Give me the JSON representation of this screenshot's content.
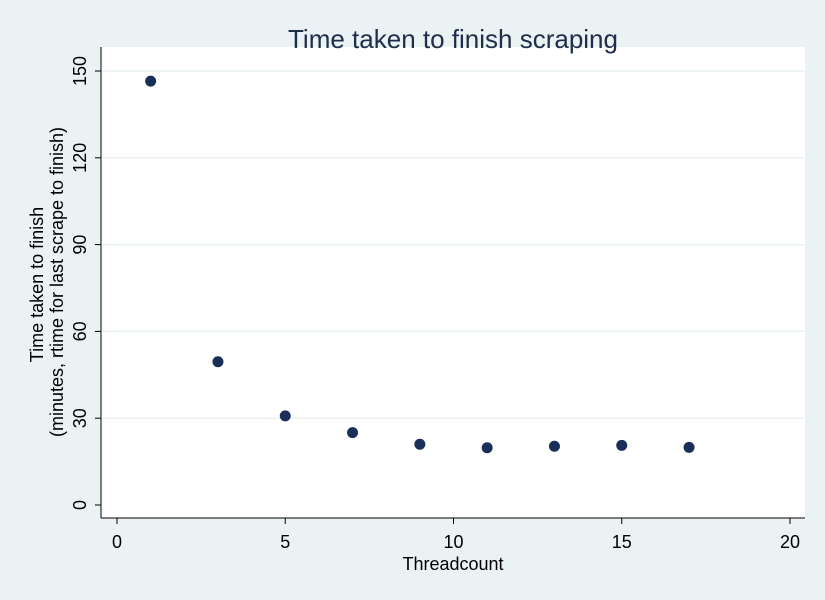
{
  "chart_data": {
    "type": "scatter",
    "title": "Time taken to finish scraping",
    "xlabel": "Threadcount",
    "ylabel_lines": [
      "Time taken to finish",
      "(minutes, rtime for last scrape to finish)"
    ],
    "xlim": [
      0,
      20
    ],
    "ylim": [
      0,
      150
    ],
    "xticks": [
      0,
      5,
      10,
      15,
      20
    ],
    "yticks": [
      0,
      30,
      60,
      90,
      120,
      150
    ],
    "grid": "horizontal",
    "series": [
      {
        "x": [
          1,
          3,
          5,
          7,
          9,
          11,
          13,
          15,
          17
        ],
        "y": [
          146.5,
          49.5,
          30.8,
          25.0,
          21.0,
          19.8,
          20.3,
          20.6,
          19.9
        ]
      }
    ],
    "colors": {
      "background": "#eaf2f3",
      "plot_area": "#ffffff",
      "point": "#1a2e5a",
      "title": "#1e2d4a"
    }
  }
}
